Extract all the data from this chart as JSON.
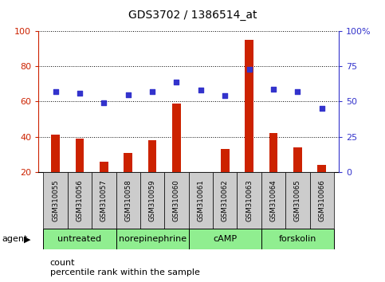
{
  "title": "GDS3702 / 1386514_at",
  "samples": [
    "GSM310055",
    "GSM310056",
    "GSM310057",
    "GSM310058",
    "GSM310059",
    "GSM310060",
    "GSM310061",
    "GSM310062",
    "GSM310063",
    "GSM310064",
    "GSM310065",
    "GSM310066"
  ],
  "counts": [
    41,
    39,
    26,
    31,
    38,
    59,
    20,
    33,
    95,
    42,
    34,
    24
  ],
  "percentiles": [
    57,
    56,
    49,
    55,
    57,
    64,
    58,
    54,
    73,
    59,
    57,
    45
  ],
  "bar_color": "#cc2200",
  "dot_color": "#3333cc",
  "ylim_left": [
    20,
    100
  ],
  "ylim_right": [
    0,
    100
  ],
  "yticks_left": [
    20,
    40,
    60,
    80,
    100
  ],
  "ytick_labels_left": [
    "20",
    "40",
    "60",
    "80",
    "100"
  ],
  "yticks_right": [
    0,
    25,
    50,
    75,
    100
  ],
  "ytick_labels_right": [
    "0",
    "25",
    "50",
    "75",
    "100%"
  ],
  "groups": [
    {
      "label": "untreated",
      "start": 0,
      "end": 3
    },
    {
      "label": "norepinephrine",
      "start": 3,
      "end": 6
    },
    {
      "label": "cAMP",
      "start": 6,
      "end": 9
    },
    {
      "label": "forskolin",
      "start": 9,
      "end": 12
    }
  ],
  "group_color": "#90ee90",
  "sample_box_color": "#cccccc",
  "background_color": "#ffffff",
  "bar_width": 0.35
}
